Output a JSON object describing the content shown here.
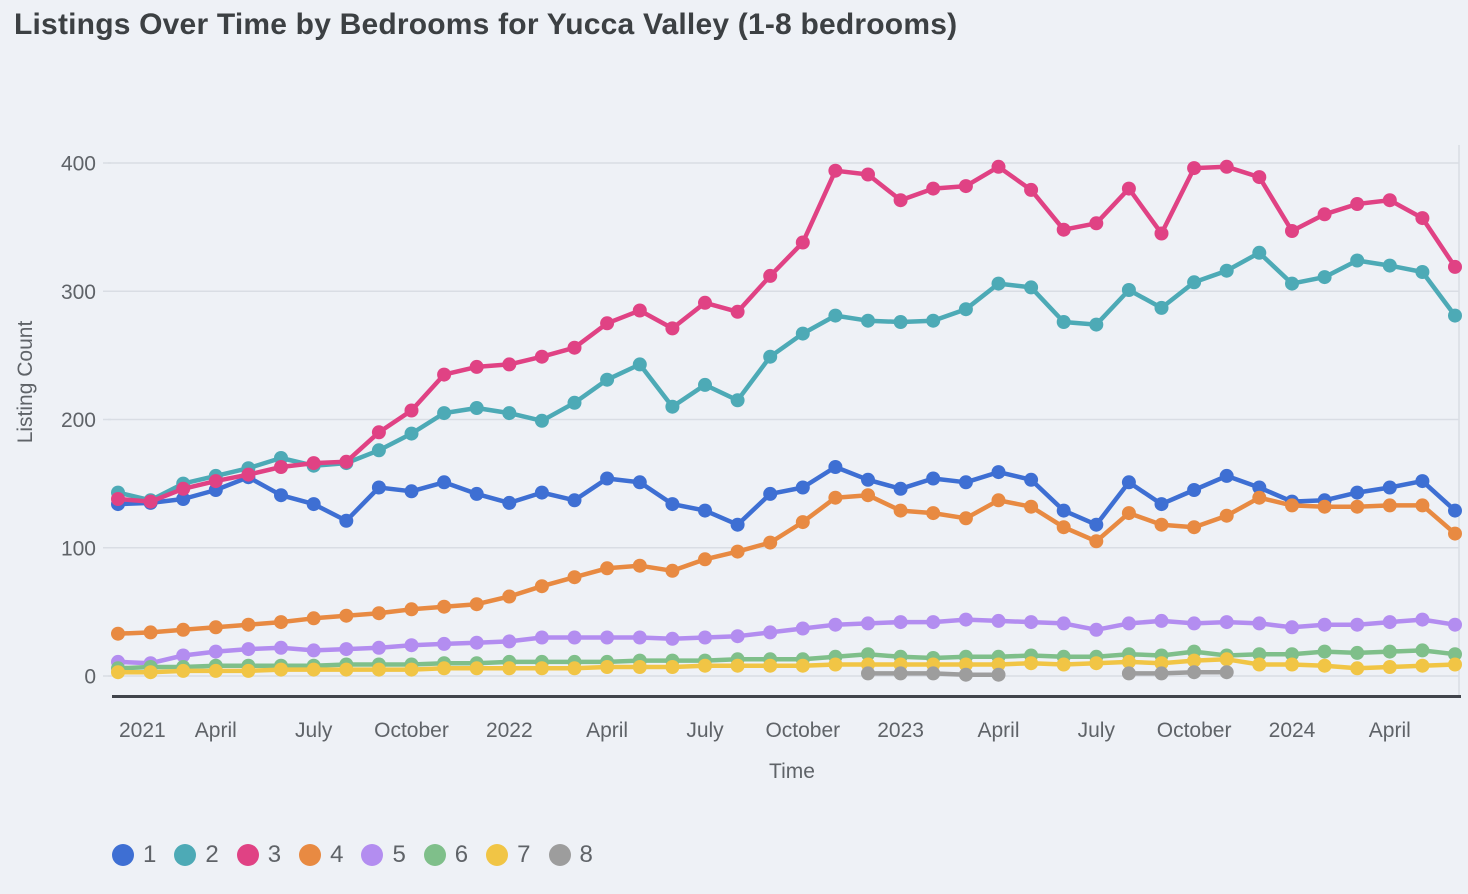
{
  "title": "Listings Over Time by Bedrooms for Yucca Valley (1-8 bedrooms)",
  "colors": {
    "background": "#eef1f6",
    "gridline": "#d9dde4",
    "axis_line": "#40444b",
    "tick_text": "#5f6368",
    "title_text": "#3c4043"
  },
  "legend": {
    "items": [
      {
        "label": "1",
        "color": "#3e6fd3"
      },
      {
        "label": "2",
        "color": "#4daab6"
      },
      {
        "label": "3",
        "color": "#e04284"
      },
      {
        "label": "4",
        "color": "#e88a42"
      },
      {
        "label": "5",
        "color": "#b38df0"
      },
      {
        "label": "6",
        "color": "#7fbf8a"
      },
      {
        "label": "7",
        "color": "#f1c545"
      },
      {
        "label": "8",
        "color": "#9d9d9d"
      }
    ]
  },
  "chart_data": {
    "type": "line",
    "title": "Listings Over Time by Bedrooms for Yucca Valley (1-8 bedrooms)",
    "xlabel": "Time",
    "ylabel": "Listing Count",
    "ylim": [
      0,
      400
    ],
    "grid": true,
    "legend_position": "bottom",
    "x": [
      "Jan 2021",
      "Feb 2021",
      "Mar 2021",
      "Apr 2021",
      "May 2021",
      "Jun 2021",
      "Jul 2021",
      "Aug 2021",
      "Sep 2021",
      "Oct 2021",
      "Nov 2021",
      "Dec 2021",
      "Jan 2022",
      "Feb 2022",
      "Mar 2022",
      "Apr 2022",
      "May 2022",
      "Jun 2022",
      "Jul 2022",
      "Aug 2022",
      "Sep 2022",
      "Oct 2022",
      "Nov 2022",
      "Dec 2022",
      "Jan 2023",
      "Feb 2023",
      "Mar 2023",
      "Apr 2023",
      "May 2023",
      "Jun 2023",
      "Jul 2023",
      "Aug 2023",
      "Sep 2023",
      "Oct 2023",
      "Nov 2023",
      "Dec 2023",
      "Jan 2024",
      "Feb 2024",
      "Mar 2024",
      "Apr 2024",
      "May 2024",
      "Jun 2024"
    ],
    "xticks": [
      {
        "index": 0,
        "label": "2021"
      },
      {
        "index": 3,
        "label": "April"
      },
      {
        "index": 6,
        "label": "July"
      },
      {
        "index": 9,
        "label": "October"
      },
      {
        "index": 12,
        "label": "2022"
      },
      {
        "index": 15,
        "label": "April"
      },
      {
        "index": 18,
        "label": "July"
      },
      {
        "index": 21,
        "label": "October"
      },
      {
        "index": 24,
        "label": "2023"
      },
      {
        "index": 27,
        "label": "April"
      },
      {
        "index": 30,
        "label": "July"
      },
      {
        "index": 33,
        "label": "October"
      },
      {
        "index": 36,
        "label": "2024"
      },
      {
        "index": 39,
        "label": "April"
      }
    ],
    "yticks": [
      0,
      100,
      200,
      300,
      400
    ],
    "series": [
      {
        "name": "1",
        "color": "#3e6fd3",
        "values": [
          134,
          135,
          138,
          145,
          155,
          141,
          134,
          121,
          147,
          144,
          151,
          142,
          135,
          143,
          137,
          154,
          151,
          134,
          129,
          118,
          142,
          147,
          163,
          153,
          146,
          154,
          151,
          159,
          153,
          129,
          118,
          151,
          134,
          145,
          156,
          147,
          136,
          137,
          143,
          147,
          152,
          129
        ]
      },
      {
        "name": "2",
        "color": "#4daab6",
        "values": [
          143,
          137,
          150,
          156,
          162,
          170,
          164,
          166,
          176,
          189,
          205,
          209,
          205,
          199,
          213,
          231,
          243,
          210,
          227,
          215,
          249,
          267,
          281,
          277,
          276,
          277,
          286,
          306,
          303,
          276,
          274,
          301,
          287,
          307,
          316,
          330,
          306,
          311,
          324,
          320,
          315,
          281
        ]
      },
      {
        "name": "3",
        "color": "#e04284",
        "values": [
          138,
          136,
          146,
          152,
          157,
          163,
          166,
          167,
          190,
          207,
          235,
          241,
          243,
          249,
          256,
          275,
          285,
          271,
          291,
          284,
          312,
          338,
          394,
          391,
          371,
          380,
          382,
          397,
          379,
          348,
          353,
          380,
          345,
          396,
          397,
          389,
          347,
          360,
          368,
          371,
          357,
          319
        ]
      },
      {
        "name": "4",
        "color": "#e88a42",
        "values": [
          33,
          34,
          36,
          38,
          40,
          42,
          45,
          47,
          49,
          52,
          54,
          56,
          62,
          70,
          77,
          84,
          86,
          82,
          91,
          97,
          104,
          120,
          139,
          141,
          129,
          127,
          123,
          137,
          132,
          116,
          105,
          127,
          118,
          116,
          125,
          139,
          133,
          132,
          132,
          133,
          133,
          111
        ]
      },
      {
        "name": "5",
        "color": "#b38df0",
        "values": [
          11,
          10,
          16,
          19,
          21,
          22,
          20,
          21,
          22,
          24,
          25,
          26,
          27,
          30,
          30,
          30,
          30,
          29,
          30,
          31,
          34,
          37,
          40,
          41,
          42,
          42,
          44,
          43,
          42,
          41,
          36,
          41,
          43,
          41,
          42,
          41,
          38,
          40,
          40,
          42,
          44,
          40
        ]
      },
      {
        "name": "6",
        "color": "#7fbf8a",
        "values": [
          6,
          7,
          7,
          8,
          8,
          8,
          8,
          9,
          9,
          9,
          10,
          10,
          11,
          11,
          11,
          11,
          12,
          12,
          12,
          13,
          13,
          13,
          15,
          17,
          15,
          14,
          15,
          15,
          16,
          15,
          15,
          17,
          16,
          19,
          16,
          17,
          17,
          19,
          18,
          19,
          20,
          17
        ]
      },
      {
        "name": "7",
        "color": "#f1c545",
        "values": [
          3,
          3,
          4,
          4,
          4,
          5,
          5,
          5,
          5,
          5,
          6,
          6,
          6,
          6,
          6,
          7,
          7,
          7,
          8,
          8,
          8,
          8,
          9,
          9,
          9,
          9,
          9,
          9,
          10,
          9,
          10,
          11,
          10,
          12,
          13,
          9,
          9,
          8,
          6,
          7,
          8,
          9
        ]
      },
      {
        "name": "8",
        "color": "#9d9d9d",
        "values": [
          null,
          null,
          null,
          null,
          null,
          null,
          null,
          null,
          null,
          null,
          null,
          null,
          null,
          null,
          null,
          null,
          null,
          null,
          null,
          null,
          null,
          null,
          null,
          2,
          2,
          2,
          1,
          1,
          null,
          null,
          null,
          2,
          2,
          3,
          3,
          null,
          null,
          null,
          null,
          null,
          null,
          null
        ]
      }
    ]
  }
}
